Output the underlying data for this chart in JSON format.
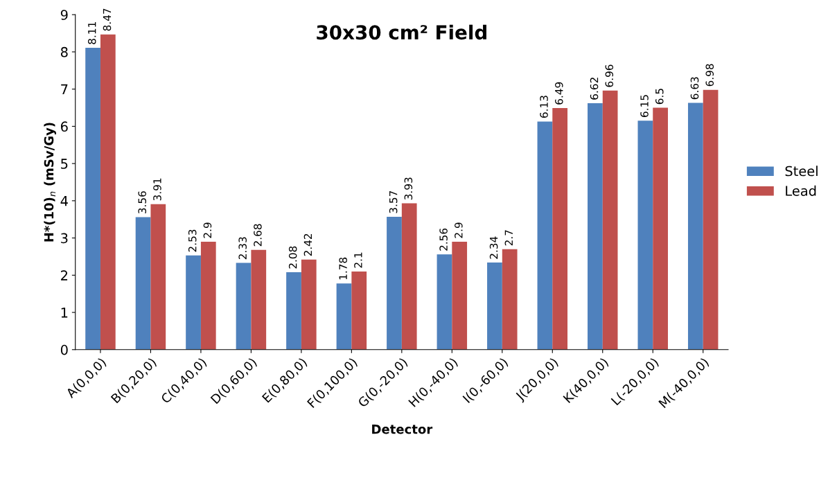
{
  "chart_data": {
    "type": "bar",
    "title": "30x30 cm² Field",
    "xlabel": "Detector",
    "ylabel": "H*(10)$_{n}$ (mSv/Gy)",
    "categories": [
      "A(0,0,0)",
      "B(0,20,0)",
      "C(0,40,0)",
      "D(0,60,0)",
      "E(0,80,0)",
      "F(0,100,0)",
      "G(0,-20,0)",
      "H(0,-40,0)",
      "I(0,-60,0)",
      "J(20,0,0)",
      "K(40,0,0)",
      "L(-20,0,0)",
      "M(-40,0,0)"
    ],
    "series": [
      {
        "name": "Steel",
        "color": "#4f81bd",
        "values": [
          8.11,
          3.56,
          2.53,
          2.33,
          2.08,
          1.78,
          3.57,
          2.56,
          2.34,
          6.13,
          6.62,
          6.15,
          6.63
        ]
      },
      {
        "name": "Lead",
        "color": "#c0504d",
        "values": [
          8.47,
          3.91,
          2.9,
          2.68,
          2.42,
          2.1,
          3.93,
          2.9,
          2.7,
          6.49,
          6.96,
          6.5,
          6.98
        ]
      }
    ],
    "ylim": [
      0,
      9
    ],
    "yticks": [
      0,
      1,
      2,
      3,
      4,
      5,
      6,
      7,
      8,
      9
    ],
    "data_labels": true,
    "legend": "right",
    "grid": false
  }
}
